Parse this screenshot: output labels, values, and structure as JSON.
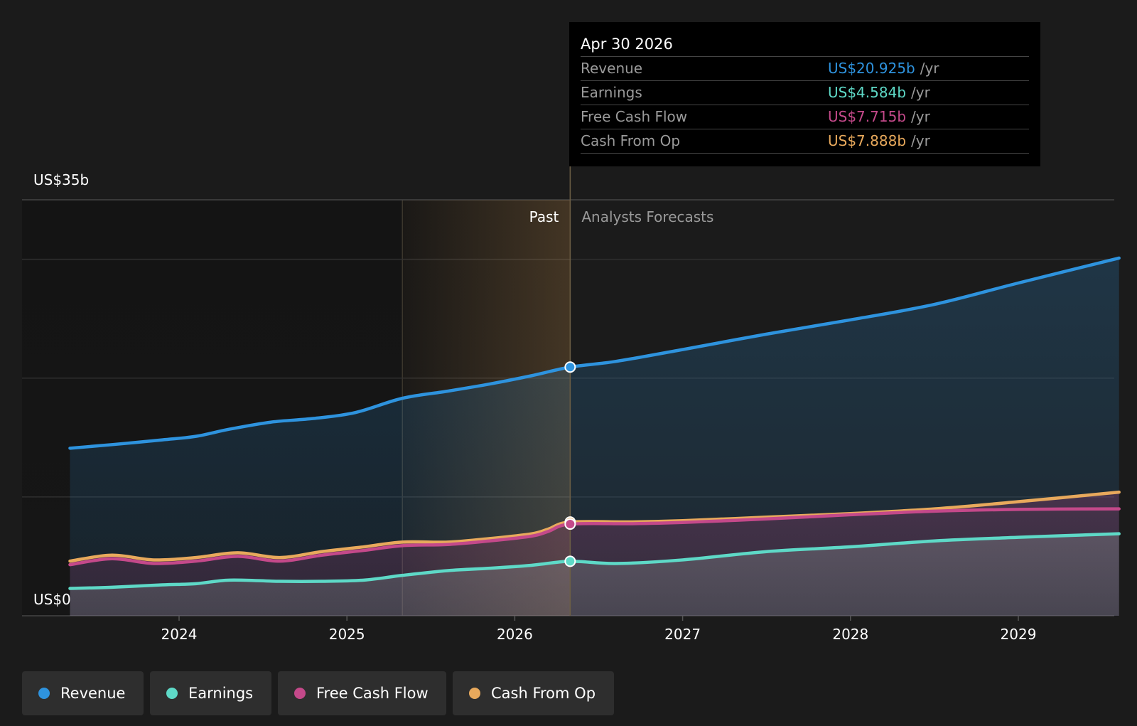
{
  "tooltip": {
    "date": "Apr 30 2026",
    "rows": [
      {
        "label": "Revenue",
        "value": "US$20.925b",
        "unit": "/yr",
        "color": "#2e93de"
      },
      {
        "label": "Earnings",
        "value": "US$4.584b",
        "unit": "/yr",
        "color": "#5ed9c7"
      },
      {
        "label": "Free Cash Flow",
        "value": "US$7.715b",
        "unit": "/yr",
        "color": "#c4498a"
      },
      {
        "label": "Cash From Op",
        "value": "US$7.888b",
        "unit": "/yr",
        "color": "#e8a95c"
      }
    ]
  },
  "chart_data": {
    "type": "area",
    "ylim": [
      0,
      35
    ],
    "xlim": [
      2023.35,
      2029.6
    ],
    "y_axis_labels": {
      "top": "US$35b",
      "bottom": "US$0"
    },
    "x_ticks": [
      {
        "value": 2024,
        "label": "2024"
      },
      {
        "value": 2025,
        "label": "2025"
      },
      {
        "value": 2026,
        "label": "2026"
      },
      {
        "value": 2027,
        "label": "2027"
      },
      {
        "value": 2028,
        "label": "2028"
      },
      {
        "value": 2029,
        "label": "2029"
      }
    ],
    "y_gridlines": [
      0,
      10,
      20,
      30,
      35
    ],
    "past_label": "Past",
    "forecast_label": "Analysts Forecasts",
    "divider_x": 2026.33,
    "highlight_start_x": 2025.33,
    "series": [
      {
        "name": "Revenue",
        "color": "#2e93de",
        "points": [
          [
            2023.35,
            14.1
          ],
          [
            2023.6,
            14.4
          ],
          [
            2023.9,
            14.8
          ],
          [
            2024.1,
            15.1
          ],
          [
            2024.3,
            15.7
          ],
          [
            2024.55,
            16.3
          ],
          [
            2024.8,
            16.6
          ],
          [
            2025.05,
            17.1
          ],
          [
            2025.33,
            18.3
          ],
          [
            2025.6,
            18.9
          ],
          [
            2025.85,
            19.5
          ],
          [
            2026.1,
            20.2
          ],
          [
            2026.33,
            20.925
          ],
          [
            2026.6,
            21.4
          ],
          [
            2027.0,
            22.4
          ],
          [
            2027.5,
            23.7
          ],
          [
            2028.0,
            24.9
          ],
          [
            2028.5,
            26.2
          ],
          [
            2029.0,
            28.0
          ],
          [
            2029.6,
            30.1
          ]
        ]
      },
      {
        "name": "Cash From Op",
        "color": "#e8a95c",
        "points": [
          [
            2023.35,
            4.6
          ],
          [
            2023.6,
            5.1
          ],
          [
            2023.85,
            4.7
          ],
          [
            2024.1,
            4.9
          ],
          [
            2024.35,
            5.3
          ],
          [
            2024.6,
            4.9
          ],
          [
            2024.85,
            5.4
          ],
          [
            2025.1,
            5.8
          ],
          [
            2025.33,
            6.2
          ],
          [
            2025.6,
            6.2
          ],
          [
            2025.85,
            6.5
          ],
          [
            2026.1,
            6.9
          ],
          [
            2026.2,
            7.3
          ],
          [
            2026.33,
            7.888
          ],
          [
            2026.7,
            7.9
          ],
          [
            2027.0,
            8.0
          ],
          [
            2027.5,
            8.3
          ],
          [
            2028.0,
            8.6
          ],
          [
            2028.5,
            9.0
          ],
          [
            2029.0,
            9.6
          ],
          [
            2029.6,
            10.4
          ]
        ]
      },
      {
        "name": "Free Cash Flow",
        "color": "#c4498a",
        "points": [
          [
            2023.35,
            4.3
          ],
          [
            2023.6,
            4.8
          ],
          [
            2023.85,
            4.4
          ],
          [
            2024.1,
            4.6
          ],
          [
            2024.35,
            5.0
          ],
          [
            2024.6,
            4.6
          ],
          [
            2024.85,
            5.1
          ],
          [
            2025.1,
            5.5
          ],
          [
            2025.33,
            5.9
          ],
          [
            2025.6,
            6.0
          ],
          [
            2025.85,
            6.3
          ],
          [
            2026.1,
            6.7
          ],
          [
            2026.2,
            7.1
          ],
          [
            2026.33,
            7.715
          ],
          [
            2026.7,
            7.75
          ],
          [
            2027.0,
            7.85
          ],
          [
            2027.5,
            8.15
          ],
          [
            2028.0,
            8.5
          ],
          [
            2028.5,
            8.8
          ],
          [
            2029.0,
            8.95
          ],
          [
            2029.6,
            9.0
          ]
        ]
      },
      {
        "name": "Earnings",
        "color": "#5ed9c7",
        "points": [
          [
            2023.35,
            2.3
          ],
          [
            2023.6,
            2.4
          ],
          [
            2023.9,
            2.6
          ],
          [
            2024.1,
            2.7
          ],
          [
            2024.3,
            3.0
          ],
          [
            2024.6,
            2.9
          ],
          [
            2024.85,
            2.9
          ],
          [
            2025.1,
            3.0
          ],
          [
            2025.33,
            3.4
          ],
          [
            2025.6,
            3.8
          ],
          [
            2025.85,
            4.0
          ],
          [
            2026.1,
            4.25
          ],
          [
            2026.33,
            4.584
          ],
          [
            2026.6,
            4.4
          ],
          [
            2027.0,
            4.7
          ],
          [
            2027.5,
            5.4
          ],
          [
            2028.0,
            5.8
          ],
          [
            2028.5,
            6.3
          ],
          [
            2029.0,
            6.6
          ],
          [
            2029.6,
            6.9
          ]
        ]
      }
    ]
  },
  "legend": [
    {
      "label": "Revenue",
      "color": "#2e93de"
    },
    {
      "label": "Earnings",
      "color": "#5ed9c7"
    },
    {
      "label": "Free Cash Flow",
      "color": "#c4498a"
    },
    {
      "label": "Cash From Op",
      "color": "#e8a95c"
    }
  ]
}
